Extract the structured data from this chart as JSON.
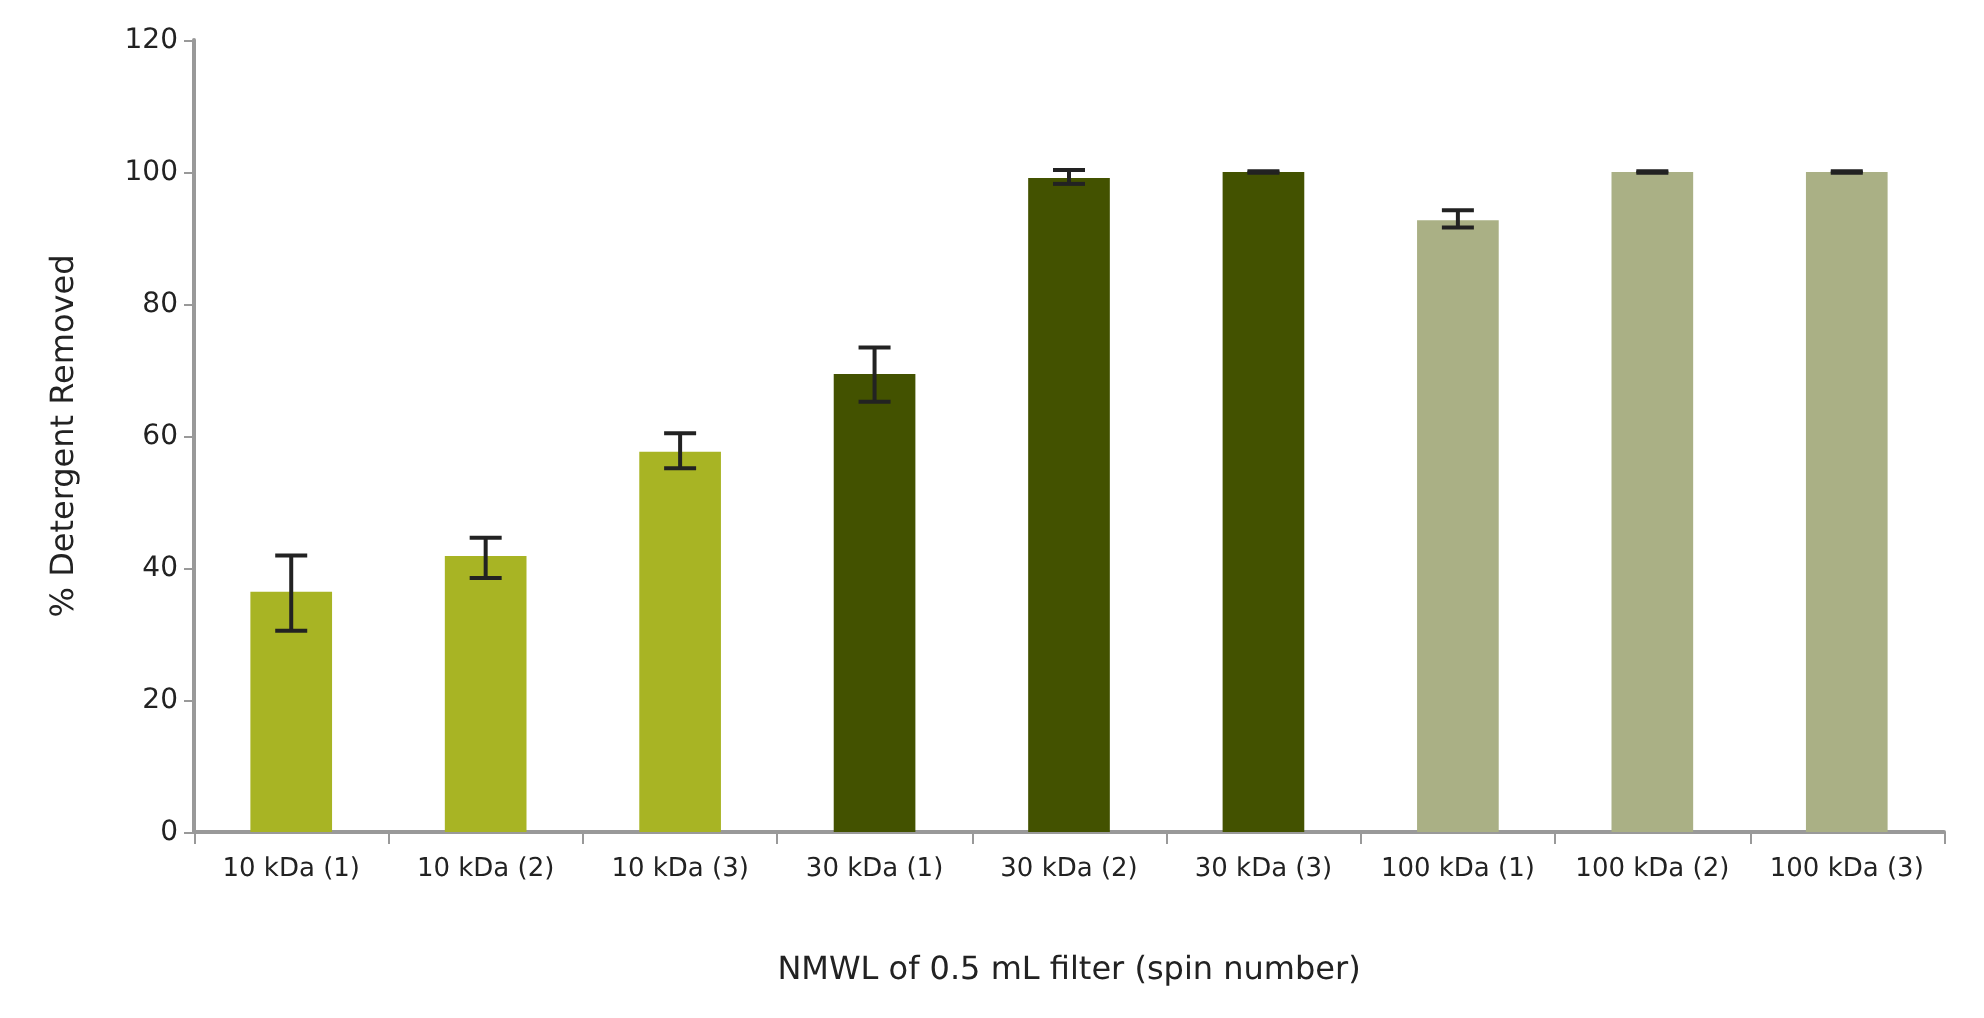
{
  "chart_data": {
    "type": "bar",
    "xlabel": "NMWL of 0.5 mL filter (spin number)",
    "ylabel": "% Detergent Removed",
    "categories": [
      "10 kDa (1)",
      "10 kDa (2)",
      "10 kDa (3)",
      "30 kDa (1)",
      "30 kDa (2)",
      "30 kDa (3)",
      "100 kDa (1)",
      "100 kDa (2)",
      "100 kDa (3)"
    ],
    "values": [
      36.4,
      41.8,
      57.6,
      69.4,
      99.1,
      100,
      92.7,
      100,
      100
    ],
    "colors": [
      "#a8b424",
      "#a8b424",
      "#a8b424",
      "#435200",
      "#435200",
      "#435200",
      "#aab085",
      "#aab085",
      "#aab085"
    ],
    "errors": [
      [
        30.5,
        41.9
      ],
      [
        38.5,
        44.6
      ],
      [
        55.1,
        60.4
      ],
      [
        65.2,
        73.4
      ],
      [
        98.2,
        100.3
      ],
      [
        99.9,
        100.1
      ],
      [
        91.6,
        94.2
      ],
      [
        99.9,
        100.1
      ],
      [
        99.9,
        100.1
      ]
    ],
    "ylim": [
      0,
      120
    ],
    "yticks": [
      0,
      20,
      40,
      60,
      80,
      100,
      120
    ],
    "grid": false
  }
}
